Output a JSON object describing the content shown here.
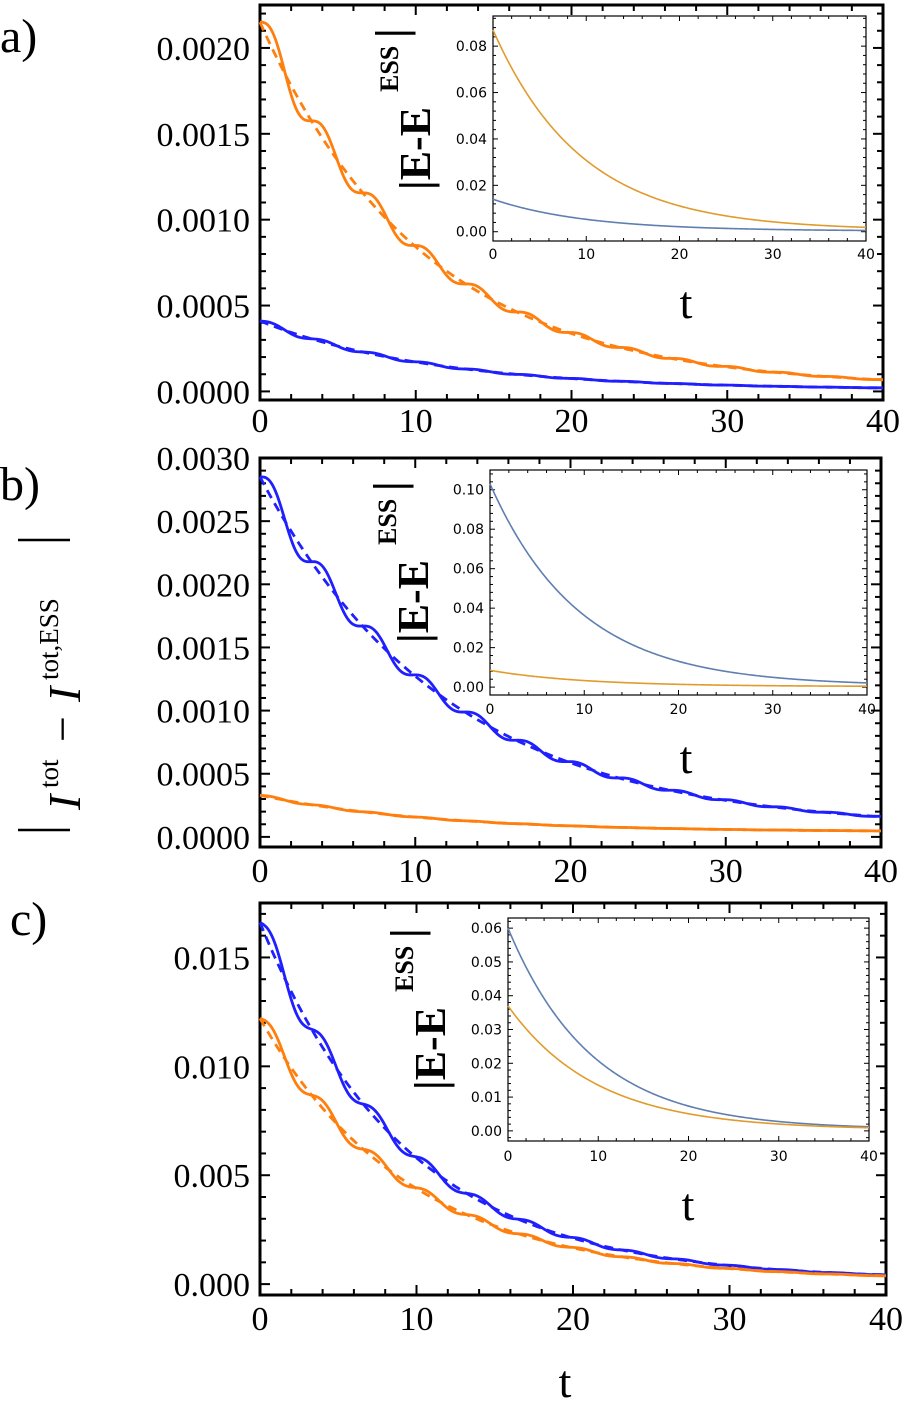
{
  "figure": {
    "shared_ylabel": {
      "main": "I",
      "sup1": "tot",
      "minus": "−",
      "sup2": "tot,ESS"
    },
    "bottom_xlabel": "t"
  },
  "chart_data": [
    {
      "type": "line",
      "panel_label": "a)",
      "xlim": [
        0,
        40
      ],
      "ylim": [
        -5e-05,
        0.00225
      ],
      "xticks": [
        "0",
        "10",
        "20",
        "30",
        "40"
      ],
      "yticks": [
        "0.0000",
        "0.0005",
        "0.0010",
        "0.0015",
        "0.0020"
      ],
      "ytick_values": [
        0,
        0.0005,
        0.001,
        0.0015,
        0.002
      ],
      "series": [
        {
          "name": "orange-solid",
          "color": "#ff7f0e",
          "style": "solid",
          "y0": 0.00215,
          "tau": 10.5,
          "floor": 2e-05,
          "osc_amp": 0.05,
          "osc_period": 3.3
        },
        {
          "name": "orange-dashed",
          "color": "#ff7f0e",
          "style": "dashed",
          "y0": 0.00215,
          "tau": 10.5,
          "floor": 2e-05,
          "osc_amp": 0,
          "osc_period": 3.3
        },
        {
          "name": "blue-solid",
          "color": "#1f1fff",
          "style": "solid",
          "y0": 0.00041,
          "tau": 11,
          "floor": 1e-05,
          "osc_amp": 0.04,
          "osc_period": 3.3
        },
        {
          "name": "blue-dashed",
          "color": "#1f1fff",
          "style": "dashed",
          "y0": 0.00041,
          "tau": 11,
          "floor": 1e-05,
          "osc_amp": 0,
          "osc_period": 3.3
        }
      ],
      "inset": {
        "xlim": [
          0,
          40
        ],
        "ylim": [
          -0.004,
          0.093
        ],
        "xticks": [
          "0",
          "10",
          "20",
          "30",
          "40"
        ],
        "yticks": [
          "0.00",
          "0.02",
          "0.04",
          "0.06",
          "0.08"
        ],
        "ytick_values": [
          0,
          0.02,
          0.04,
          0.06,
          0.08
        ],
        "xlabel": "t",
        "ylabel": {
          "main": "|E-E",
          "sup": "ESS",
          "end": "|"
        },
        "series": [
          {
            "name": "inset-orange",
            "color": "#e19b2c",
            "y0": 0.087,
            "tau": 9.5,
            "floor": 0.0006
          },
          {
            "name": "inset-blue",
            "color": "#5f7fb0",
            "y0": 0.014,
            "tau": 10,
            "floor": 0.0003
          }
        ]
      }
    },
    {
      "type": "line",
      "panel_label": "b)",
      "xlim": [
        0,
        40
      ],
      "ylim": [
        -8e-05,
        0.003
      ],
      "xticks": [
        "0",
        "10",
        "20",
        "30",
        "40"
      ],
      "yticks": [
        "0.0000",
        "0.0005",
        "0.0010",
        "0.0015",
        "0.0020",
        "0.0025",
        "0.0030"
      ],
      "ytick_values": [
        0,
        0.0005,
        0.001,
        0.0015,
        0.002,
        0.0025,
        0.003
      ],
      "series": [
        {
          "name": "blue-solid",
          "color": "#1f1fff",
          "style": "solid",
          "y0": 0.00285,
          "tau": 12,
          "floor": 6e-05,
          "osc_amp": 0.045,
          "osc_period": 3.3
        },
        {
          "name": "blue-dashed",
          "color": "#1f1fff",
          "style": "dashed",
          "y0": 0.00285,
          "tau": 12,
          "floor": 6e-05,
          "osc_amp": 0,
          "osc_period": 3.3
        },
        {
          "name": "orange-solid",
          "color": "#ff7f0e",
          "style": "solid",
          "y0": 0.00033,
          "tau": 11,
          "floor": 4e-05,
          "osc_amp": 0.03,
          "osc_period": 3.3
        },
        {
          "name": "orange-dashed",
          "color": "#ff7f0e",
          "style": "dashed",
          "y0": 0.00033,
          "tau": 11,
          "floor": 4e-05,
          "osc_amp": 0,
          "osc_period": 3.3
        }
      ],
      "inset": {
        "xlim": [
          0,
          40
        ],
        "ylim": [
          -0.004,
          0.11
        ],
        "xticks": [
          "0",
          "10",
          "20",
          "30",
          "40"
        ],
        "yticks": [
          "0.00",
          "0.02",
          "0.04",
          "0.06",
          "0.08",
          "0.10"
        ],
        "ytick_values": [
          0,
          0.02,
          0.04,
          0.06,
          0.08,
          0.1
        ],
        "xlabel": "t",
        "ylabel": {
          "main": "|E-E",
          "sup": "ESS",
          "end": "|"
        },
        "series": [
          {
            "name": "inset-blue",
            "color": "#5f7fb0",
            "y0": 0.103,
            "tau": 9.5,
            "floor": 0.0006
          },
          {
            "name": "inset-orange",
            "color": "#e19b2c",
            "y0": 0.0085,
            "tau": 10,
            "floor": 0.0003
          }
        ]
      }
    },
    {
      "type": "line",
      "panel_label": "c)",
      "xlim": [
        0,
        40
      ],
      "ylim": [
        -0.0005,
        0.0175
      ],
      "xticks": [
        "0",
        "10",
        "20",
        "30",
        "40"
      ],
      "yticks": [
        "0.000",
        "0.005",
        "0.010",
        "0.015"
      ],
      "ytick_values": [
        0,
        0.005,
        0.01,
        0.015
      ],
      "series": [
        {
          "name": "blue-solid",
          "color": "#1f1fff",
          "style": "solid",
          "y0": 0.0166,
          "tau": 9.3,
          "floor": 0.0002,
          "osc_amp": 0.045,
          "osc_period": 3.3
        },
        {
          "name": "blue-dashed",
          "color": "#1f1fff",
          "style": "dashed",
          "y0": 0.0166,
          "tau": 9.3,
          "floor": 0.0002,
          "osc_amp": 0,
          "osc_period": 3.3
        },
        {
          "name": "orange-solid",
          "color": "#ff7f0e",
          "style": "solid",
          "y0": 0.0122,
          "tau": 9.5,
          "floor": 0.0002,
          "osc_amp": 0.045,
          "osc_period": 3.3
        },
        {
          "name": "orange-dashed",
          "color": "#ff7f0e",
          "style": "dashed",
          "y0": 0.0122,
          "tau": 9.5,
          "floor": 0.0002,
          "osc_amp": 0,
          "osc_period": 3.3
        }
      ],
      "inset": {
        "xlim": [
          0,
          40
        ],
        "ylim": [
          -0.003,
          0.063
        ],
        "xticks": [
          "0",
          "10",
          "20",
          "30",
          "40"
        ],
        "yticks": [
          "0.00",
          "0.01",
          "0.02",
          "0.03",
          "0.04",
          "0.05",
          "0.06"
        ],
        "ytick_values": [
          0,
          0.01,
          0.02,
          0.03,
          0.04,
          0.05,
          0.06
        ],
        "xlabel": "t",
        "ylabel": {
          "main": "|E-E",
          "sup": "ESS",
          "end": "|"
        },
        "series": [
          {
            "name": "inset-blue",
            "color": "#5f7fb0",
            "y0": 0.06,
            "tau": 9.3,
            "floor": 0.0004
          },
          {
            "name": "inset-orange",
            "color": "#e19b2c",
            "y0": 0.037,
            "tau": 9.8,
            "floor": 0.0003
          }
        ]
      }
    }
  ]
}
